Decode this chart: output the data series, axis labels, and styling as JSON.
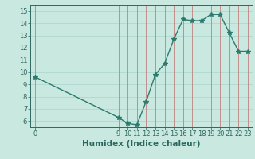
{
  "x": [
    0,
    9,
    10,
    11,
    12,
    13,
    14,
    15,
    16,
    17,
    18,
    19,
    20,
    21,
    22,
    23
  ],
  "y": [
    9.6,
    6.3,
    5.8,
    5.7,
    7.6,
    9.8,
    10.7,
    12.7,
    14.3,
    14.2,
    14.2,
    14.7,
    14.7,
    13.2,
    11.7,
    11.7
  ],
  "line_color": "#2d7a6e",
  "bg_color": "#c8e8e0",
  "hgrid_color": "#b0d8d0",
  "vgrid_color": "#c08080",
  "xlabel": "Humidex (Indice chaleur)",
  "ylim": [
    5.5,
    15.5
  ],
  "xlim": [
    -0.5,
    23.5
  ],
  "yticks": [
    6,
    7,
    8,
    9,
    10,
    11,
    12,
    13,
    14,
    15
  ],
  "xticks": [
    0,
    9,
    10,
    11,
    12,
    13,
    14,
    15,
    16,
    17,
    18,
    19,
    20,
    21,
    22,
    23
  ],
  "tick_color": "#2d6860",
  "label_fontsize": 6,
  "xlabel_fontsize": 7.5
}
